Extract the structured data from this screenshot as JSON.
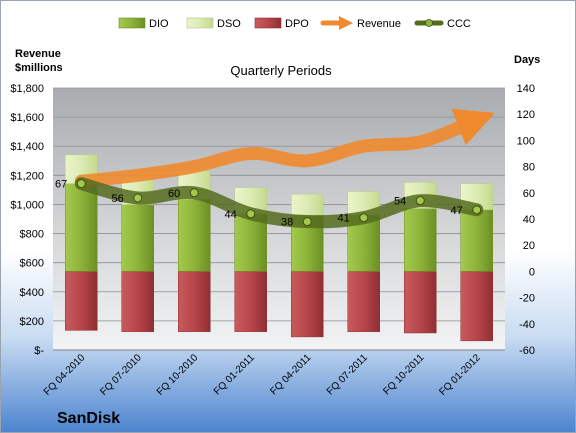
{
  "company": "SanDisk",
  "legend": [
    {
      "label": "DIO",
      "kind": "bar",
      "color": "#8db33a"
    },
    {
      "label": "DSO",
      "kind": "bar",
      "color": "#dcebb4"
    },
    {
      "label": "DPO",
      "kind": "bar",
      "color": "#b7464a"
    },
    {
      "label": "Revenue",
      "kind": "arrow",
      "color": "#f08a2e"
    },
    {
      "label": "CCC",
      "kind": "line",
      "color": "#556b1f"
    }
  ],
  "chart_data": {
    "type": "bar",
    "title": "Quarterly Periods",
    "y_left_label_line1": "Revenue",
    "y_left_label_line2": "$millions",
    "y_right_label": "Days",
    "categories": [
      "FQ 04-2010",
      "FQ 07-2010",
      "FQ 10-2010",
      "FQ 01-2011",
      "FQ 04-2011",
      "FQ 07-2011",
      "FQ 10-2011",
      "FQ 01-2012"
    ],
    "left_axis": {
      "min": 0,
      "max": 1800,
      "step": 200,
      "tick_labels": [
        "$-",
        "$200",
        "$400",
        "$600",
        "$800",
        "$1,000",
        "$1,200",
        "$1,400",
        "$1,600",
        "$1,800"
      ]
    },
    "right_axis": {
      "min": -60,
      "max": 140,
      "step": 20
    },
    "series": [
      {
        "name": "DIO",
        "axis": "right",
        "values": [
          67,
          51,
          55,
          44,
          43,
          43,
          48,
          47
        ]
      },
      {
        "name": "DSO",
        "axis": "right",
        "values": [
          22,
          20,
          22,
          20,
          16,
          18,
          20,
          20
        ]
      },
      {
        "name": "DPO",
        "axis": "right",
        "values": [
          -45,
          -46,
          -46,
          -46,
          -50,
          -46,
          -47,
          -53
        ]
      },
      {
        "name": "Revenue",
        "axis": "left",
        "values": [
          1160,
          1200,
          1260,
          1350,
          1300,
          1400,
          1430,
          1580
        ]
      },
      {
        "name": "CCC",
        "axis": "right",
        "values": [
          67,
          56,
          60,
          44,
          38,
          41,
          54,
          47
        ]
      }
    ],
    "data_labels": [
      67,
      56,
      60,
      44,
      38,
      41,
      54,
      47
    ],
    "colors": {
      "dio": "#8db33a",
      "dso": "#dcebb4",
      "dpo": "#b7464a",
      "revenue": "#f08a2e",
      "ccc": "#556b1f"
    },
    "grid": true
  }
}
